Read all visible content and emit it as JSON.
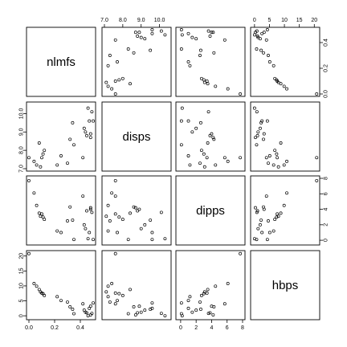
{
  "chart_data": {
    "type": "scatter",
    "variables": [
      {
        "name": "nlmfs",
        "range": [
          0.0,
          0.5
        ],
        "ticks": [
          "0.0",
          "0.2",
          "0.4"
        ]
      },
      {
        "name": "disps",
        "range": [
          7.0,
          10.5
        ],
        "ticks": [
          "7.0",
          "8.0",
          "9.0",
          "10.0"
        ]
      },
      {
        "name": "dipps",
        "range": [
          -0.3,
          8.0
        ],
        "ticks": [
          "0",
          "2",
          "4",
          "6",
          "8"
        ]
      },
      {
        "name": "hbps",
        "range": [
          -0.5,
          21.0
        ],
        "ticks": [
          "0",
          "5",
          "10",
          "15",
          "20"
        ]
      }
    ],
    "points": [
      [
        0.0,
        7.6,
        7.7,
        20.8
      ],
      [
        0.04,
        7.4,
        6.1,
        10.8
      ],
      [
        0.06,
        7.2,
        4.5,
        9.9
      ],
      [
        0.08,
        8.4,
        3.5,
        8.8
      ],
      [
        0.09,
        7.1,
        3.1,
        8.0
      ],
      [
        0.1,
        7.6,
        3.4,
        7.6
      ],
      [
        0.11,
        7.8,
        3.0,
        7.4
      ],
      [
        0.12,
        8.0,
        2.7,
        6.8
      ],
      [
        0.22,
        7.2,
        1.2,
        6.4
      ],
      [
        0.25,
        7.7,
        1.0,
        5.1
      ],
      [
        0.3,
        7.3,
        2.5,
        4.6
      ],
      [
        0.32,
        8.6,
        4.3,
        3.0
      ],
      [
        0.34,
        9.5,
        2.6,
        2.2
      ],
      [
        0.35,
        8.3,
        0.1,
        0.7
      ],
      [
        0.42,
        7.6,
        5.7,
        4.0
      ],
      [
        0.43,
        9.2,
        2.0,
        1.9
      ],
      [
        0.44,
        9.0,
        1.5,
        1.2
      ],
      [
        0.45,
        8.8,
        3.8,
        1.0
      ],
      [
        0.46,
        10.3,
        0.2,
        0.0
      ],
      [
        0.47,
        9.6,
        1.0,
        2.5
      ],
      [
        0.48,
        8.7,
        4.2,
        0.3
      ],
      [
        0.49,
        10.1,
        3.6,
        0.8
      ],
      [
        0.5,
        9.6,
        0.1,
        4.3
      ],
      [
        0.48,
        8.9,
        4.0,
        3.2
      ]
    ]
  }
}
